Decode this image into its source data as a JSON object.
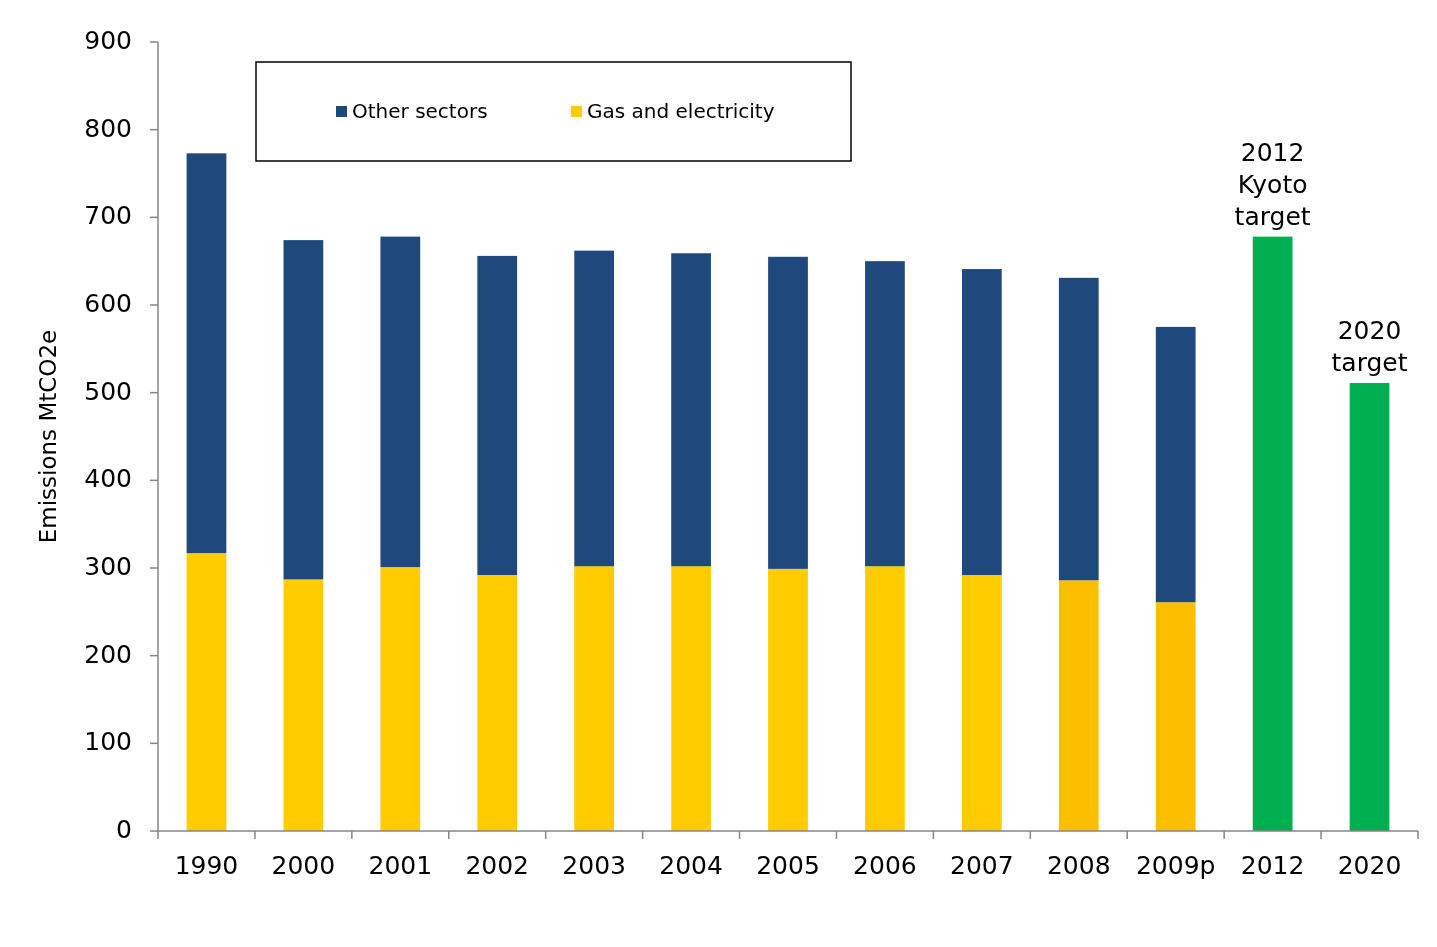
{
  "chart_data": {
    "type": "bar",
    "stacked": true,
    "ylabel": "Emissions MtCO2e",
    "categories": [
      "1990",
      "2000",
      "2001",
      "2002",
      "2003",
      "2004",
      "2005",
      "2006",
      "2007",
      "2008",
      "2009p",
      "2012",
      "2020"
    ],
    "series": [
      {
        "name": "Gas and electricity",
        "color": "#ffcc00",
        "colors": [
          "#ffcc00",
          "#ffcc00",
          "#ffcc00",
          "#ffcc00",
          "#ffcc00",
          "#ffcc00",
          "#ffcc00",
          "#ffcc00",
          "#ffcc00",
          "#fcbf00",
          "#fcbf00",
          null,
          null
        ],
        "values": [
          317,
          287,
          301,
          292,
          302,
          302,
          299,
          302,
          292,
          286,
          261,
          null,
          null
        ]
      },
      {
        "name": "Other sectors",
        "color": "#1f497d",
        "values": [
          456,
          387,
          377,
          364,
          360,
          357,
          356,
          348,
          349,
          345,
          314,
          null,
          null
        ]
      },
      {
        "color": "#00b050",
        "values": [
          null,
          null,
          null,
          null,
          null,
          null,
          null,
          null,
          null,
          null,
          null,
          678,
          511
        ]
      }
    ],
    "annotations": [
      {
        "text": "2012 Kyoto target",
        "x": "2012",
        "y": 678
      },
      {
        "text": "2020 target",
        "x": "2020",
        "y": 511
      }
    ],
    "ylim": [
      0,
      900
    ],
    "yticks": [
      0,
      100,
      200,
      300,
      400,
      500,
      600,
      700,
      800,
      900
    ],
    "grid": false,
    "legend": "top"
  }
}
